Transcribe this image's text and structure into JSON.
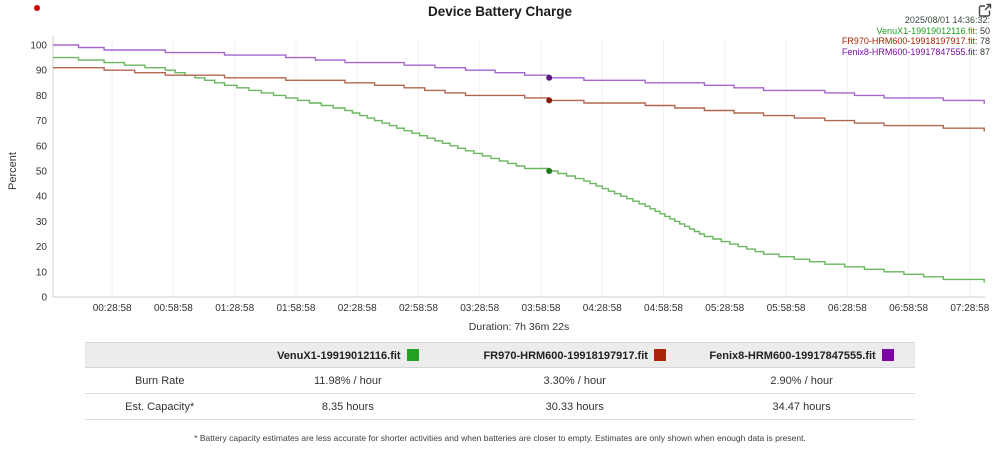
{
  "header": {
    "title": "Device Battery Charge"
  },
  "legend": {
    "timestamp": "2025/08/01 14:36:32:",
    "timestamp_color": "#3d4a3d",
    "entries": [
      {
        "label": "VenuX1-19919012116.fit:",
        "value": "50"
      },
      {
        "label": "FR970-HRM600-19918197917.fit:",
        "value": "78"
      },
      {
        "label": "Fenix8-HRM600-19917847555.fit:",
        "value": "87"
      }
    ]
  },
  "chart_data": {
    "type": "line",
    "title": "Device Battery Charge",
    "ylabel": "Percent",
    "xlabel": "Duration: 7h 36m 22s",
    "duration_label": "Duration: 7h 36m 22s",
    "ylim": [
      0,
      100
    ],
    "x_unit": "minutes",
    "grid": "faint vertical gridlines at each time tick",
    "legend_position": "top-right, inside plot",
    "y_ticks": [
      100,
      90,
      80,
      70,
      60,
      50,
      40,
      30,
      20,
      10,
      0
    ],
    "x_ticks": [
      {
        "minutes": 28.97,
        "label": "00:28:58"
      },
      {
        "minutes": 58.97,
        "label": "00:58:58"
      },
      {
        "minutes": 88.97,
        "label": "01:28:58"
      },
      {
        "minutes": 118.97,
        "label": "01:58:58"
      },
      {
        "minutes": 148.97,
        "label": "02:28:58"
      },
      {
        "minutes": 178.97,
        "label": "02:58:58"
      },
      {
        "minutes": 208.97,
        "label": "03:28:58"
      },
      {
        "minutes": 238.97,
        "label": "03:58:58"
      },
      {
        "minutes": 268.97,
        "label": "04:28:58"
      },
      {
        "minutes": 298.97,
        "label": "04:58:58"
      },
      {
        "minutes": 328.97,
        "label": "05:28:58"
      },
      {
        "minutes": 358.97,
        "label": "05:58:58"
      },
      {
        "minutes": 388.97,
        "label": "06:28:58"
      },
      {
        "minutes": 418.97,
        "label": "06:58:58"
      },
      {
        "minutes": 448.97,
        "label": "07:28:58"
      }
    ],
    "cursor": {
      "minutes": 243,
      "timestamp": "2025/08/01 14:36:32:",
      "values": [
        50,
        78,
        87
      ]
    },
    "series": [
      {
        "name": "VenuX1-19919012116.fit",
        "short": "venux1",
        "text_color": "#1f9e1f",
        "line_color": "#6ab75f",
        "dot_color": "#1d7a1d",
        "swatch_color": "#23a123",
        "points": [
          [
            0,
            95
          ],
          [
            25,
            93
          ],
          [
            55,
            90
          ],
          [
            84,
            84
          ],
          [
            114,
            79
          ],
          [
            143,
            74
          ],
          [
            172,
            66
          ],
          [
            202,
            58
          ],
          [
            231,
            51
          ],
          [
            243,
            50
          ],
          [
            260,
            46
          ],
          [
            290,
            36
          ],
          [
            319,
            24
          ],
          [
            348,
            17
          ],
          [
            378,
            13
          ],
          [
            407,
            10
          ],
          [
            436,
            7
          ],
          [
            456,
            6
          ]
        ]
      },
      {
        "name": "FR970-HRM600-19918197917.fit",
        "short": "fr970",
        "text_color": "#aa2200",
        "line_color": "#b2674f",
        "dot_color": "#8b1a0e",
        "swatch_color": "#ab2306",
        "points": [
          [
            0,
            91
          ],
          [
            25,
            90
          ],
          [
            55,
            88
          ],
          [
            84,
            87
          ],
          [
            114,
            86
          ],
          [
            143,
            85
          ],
          [
            172,
            83
          ],
          [
            202,
            80
          ],
          [
            231,
            79
          ],
          [
            243,
            78
          ],
          [
            260,
            77
          ],
          [
            290,
            76
          ],
          [
            319,
            74
          ],
          [
            348,
            72
          ],
          [
            378,
            70
          ],
          [
            407,
            68
          ],
          [
            436,
            67
          ],
          [
            456,
            66
          ]
        ]
      },
      {
        "name": "Fenix8-HRM600-19917847555.fit",
        "short": "fenix8",
        "text_color": "#7b0ca0",
        "line_color": "#a566cb",
        "dot_color": "#5a1585",
        "swatch_color": "#7d05a5",
        "points": [
          [
            0,
            100
          ],
          [
            25,
            98
          ],
          [
            55,
            97
          ],
          [
            84,
            96
          ],
          [
            114,
            95
          ],
          [
            143,
            93
          ],
          [
            172,
            92
          ],
          [
            202,
            90
          ],
          [
            231,
            88
          ],
          [
            243,
            87
          ],
          [
            260,
            86
          ],
          [
            290,
            85
          ],
          [
            319,
            84
          ],
          [
            348,
            82
          ],
          [
            378,
            81
          ],
          [
            407,
            79
          ],
          [
            436,
            78
          ],
          [
            456,
            77
          ]
        ]
      }
    ]
  },
  "table": {
    "columns": [
      {
        "name": "VenuX1-19919012116.fit"
      },
      {
        "name": "FR970-HRM600-19918197917.fit"
      },
      {
        "name": "Fenix8-HRM600-19917847555.fit"
      }
    ],
    "rows": [
      {
        "label": "Burn Rate",
        "values": [
          "11.98% / hour",
          "3.30% / hour",
          "2.90% / hour"
        ]
      },
      {
        "label": "Est. Capacity*",
        "values": [
          "8.35 hours",
          "30.33 hours",
          "34.47 hours"
        ]
      }
    ]
  },
  "footnote": "* Battery capacity estimates are less accurate for shorter activities and when batteries are closer to empty. Estimates are only shown when enough data is present."
}
